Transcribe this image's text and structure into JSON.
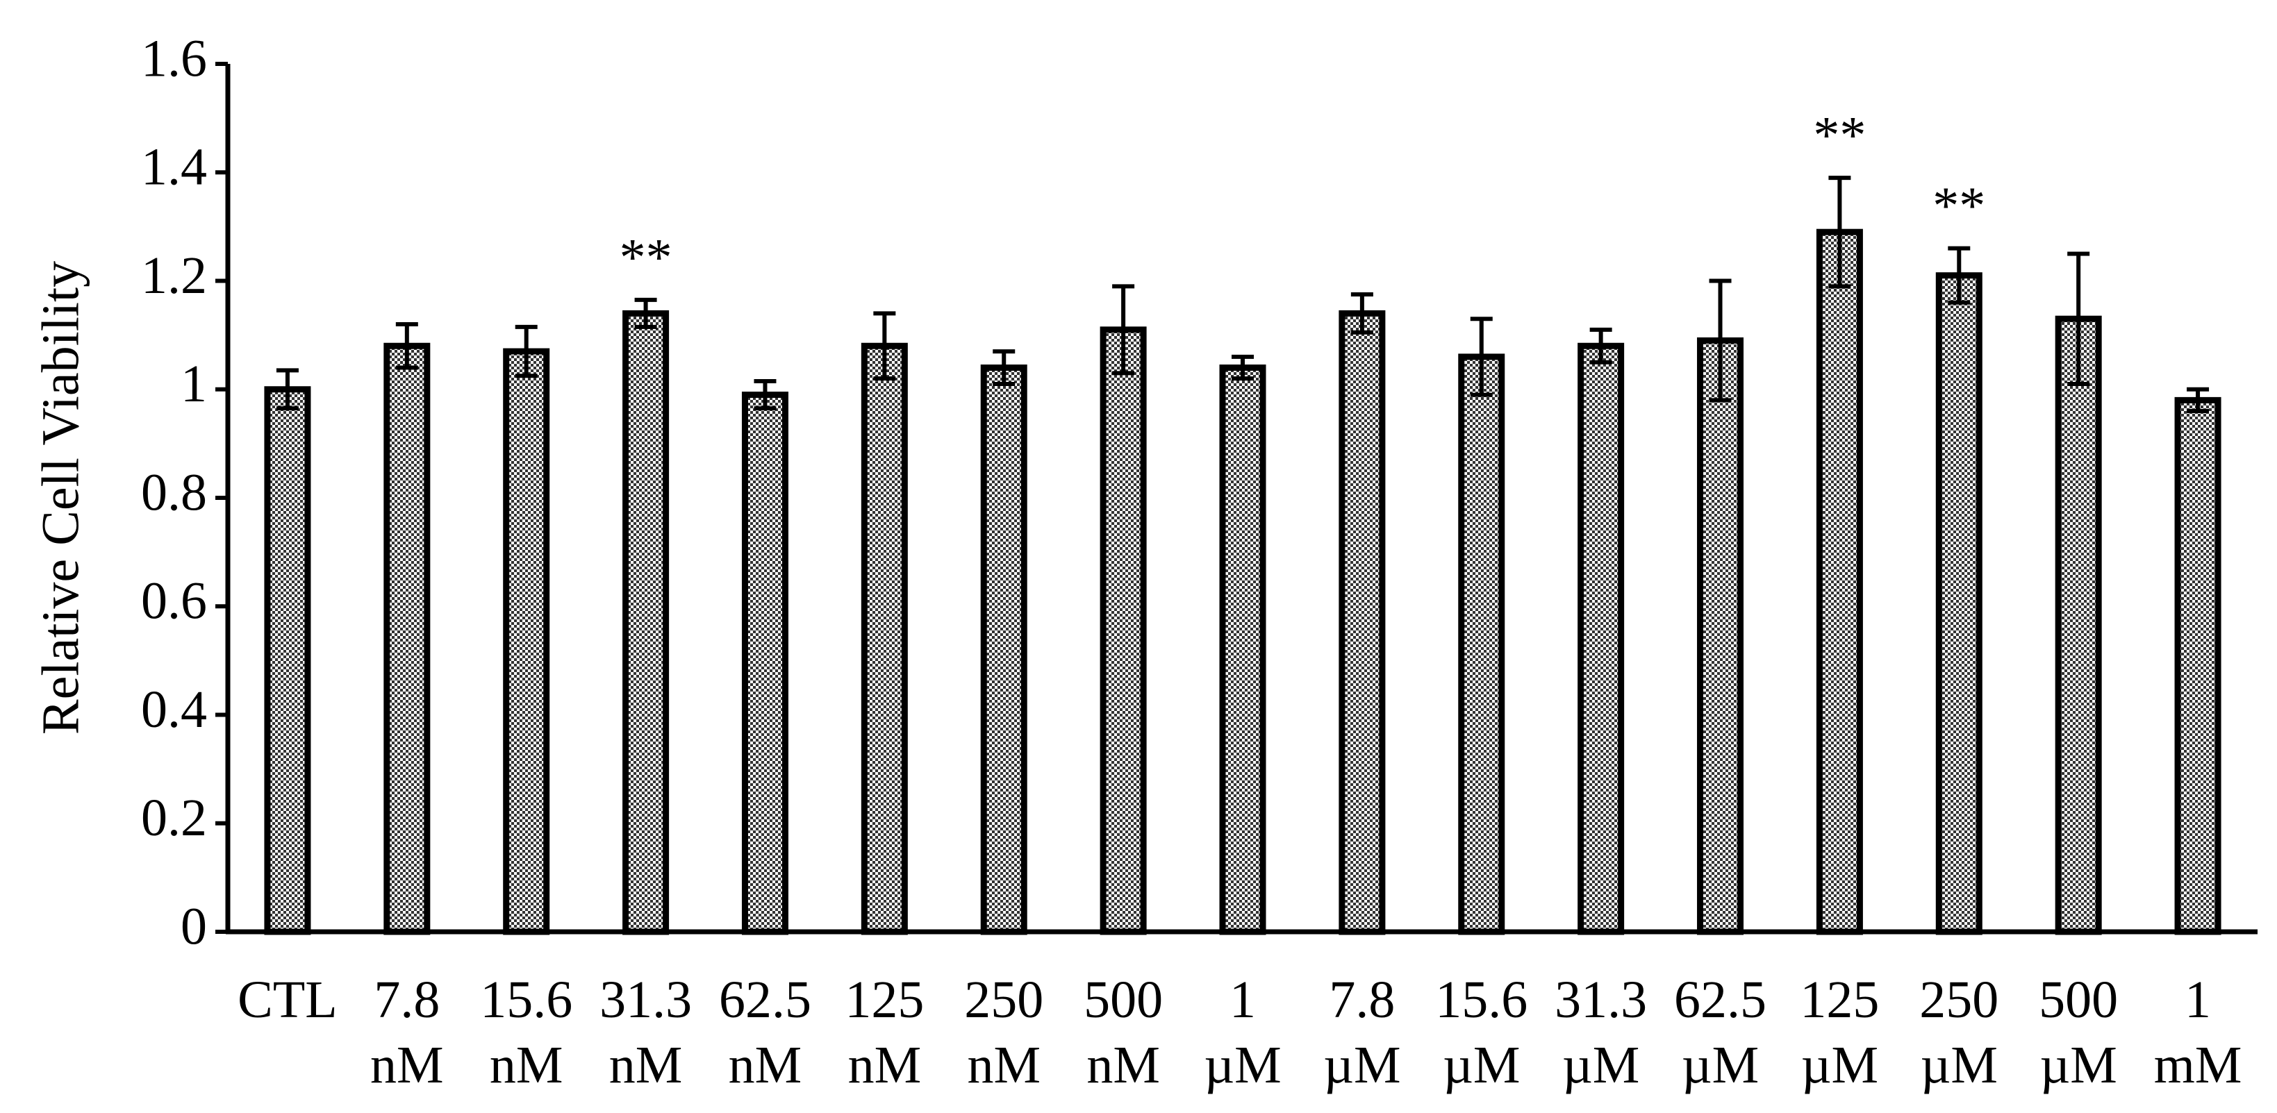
{
  "chart_data": {
    "type": "bar",
    "y_label": "Relative Cell Viability",
    "categories": [
      "CTL",
      "7.8 nM",
      "15.6 nM",
      "31.3 nM",
      "62.5 nM",
      "125 nM",
      "250 nM",
      "500 nM",
      "1 µM",
      "7.8 µM",
      "15.6 µM",
      "31.3 µM",
      "62.5 µM",
      "125 µM",
      "250 µM",
      "500 µM",
      "1 mM"
    ],
    "values": [
      1.0,
      1.08,
      1.07,
      1.14,
      0.99,
      1.08,
      1.04,
      1.11,
      1.04,
      1.14,
      1.06,
      1.08,
      1.09,
      1.29,
      1.21,
      1.13,
      0.98
    ],
    "errors": [
      0.035,
      0.04,
      0.045,
      0.025,
      0.025,
      0.06,
      0.03,
      0.08,
      0.02,
      0.035,
      0.07,
      0.03,
      0.11,
      0.1,
      0.05,
      0.12,
      0.02
    ],
    "significance": [
      null,
      null,
      null,
      "**",
      null,
      null,
      null,
      null,
      null,
      null,
      null,
      null,
      null,
      "**",
      "**",
      null,
      null
    ],
    "color": "#000000",
    "ylim": [
      0,
      1.6
    ],
    "yticks": [
      0,
      0.2,
      0.4,
      0.6,
      0.8,
      1,
      1.2,
      1.4,
      1.6
    ],
    "grid": false
  }
}
